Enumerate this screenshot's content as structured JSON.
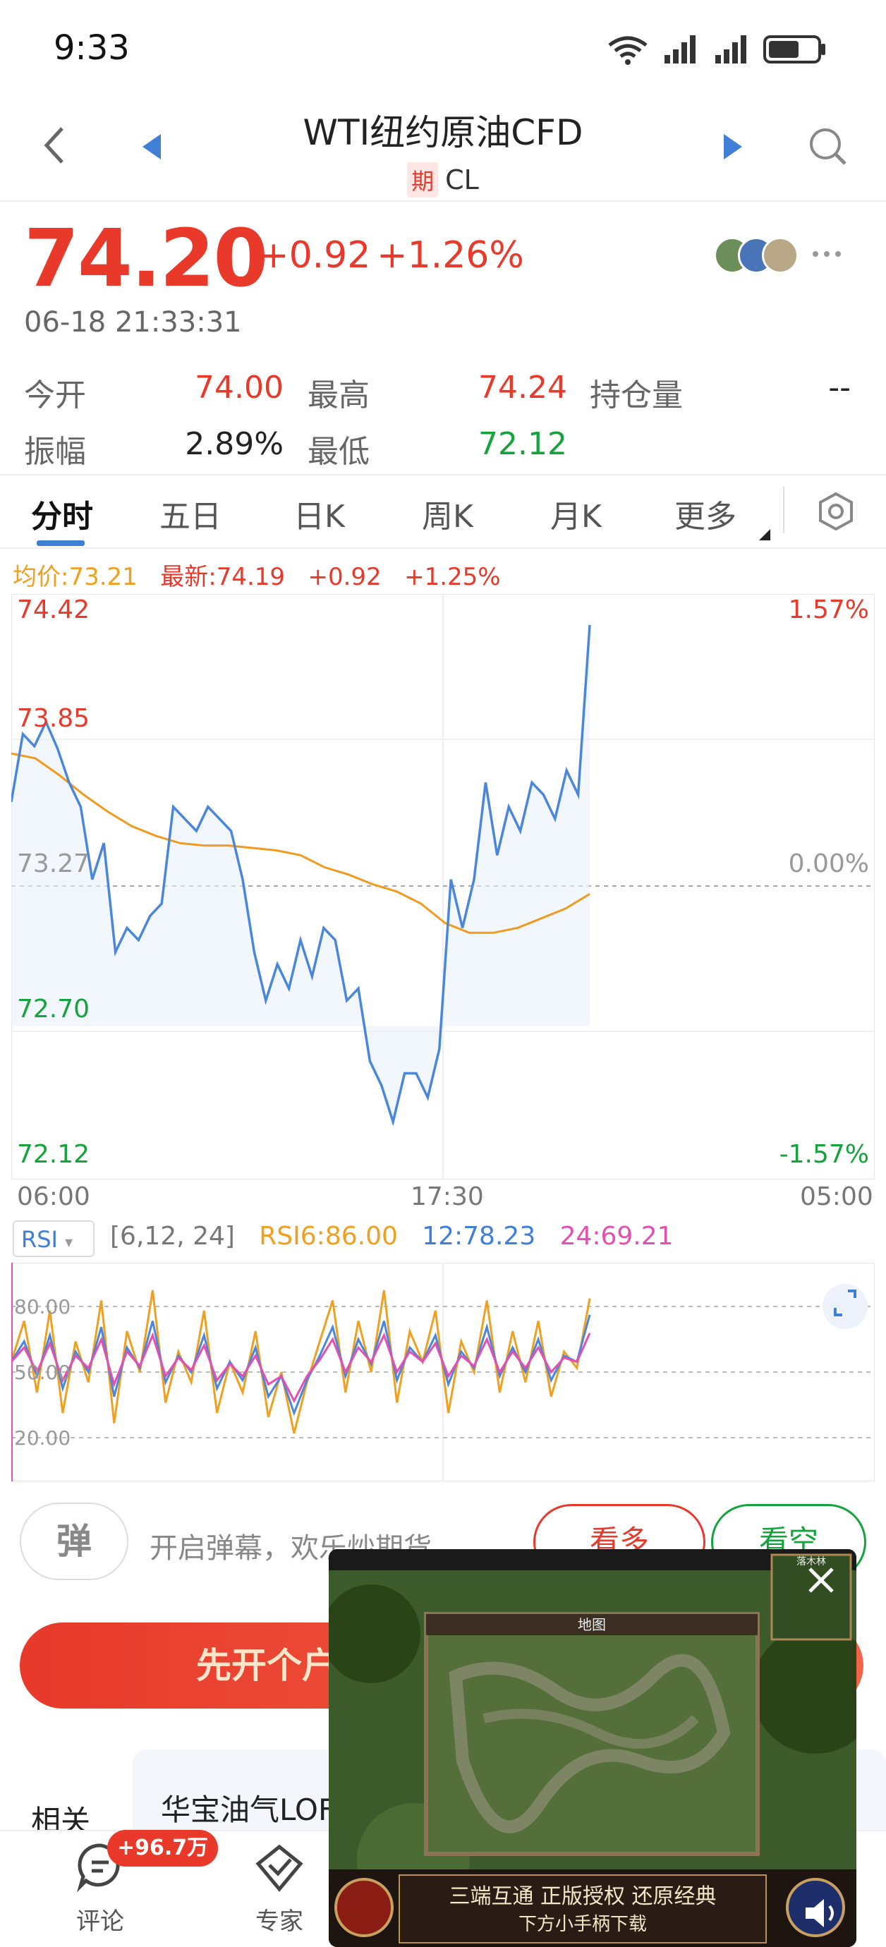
{
  "status_bar": {
    "time": "9:33"
  },
  "header": {
    "title": "WTI纽约原油CFD",
    "badge": "期",
    "code": "CL"
  },
  "quote": {
    "price": "74.20",
    "change": "+0.92",
    "change_pct": "+1.26%",
    "timestamp": "06-18 21:33:31"
  },
  "stats": [
    {
      "label": "今开",
      "value": "74.00",
      "color": "red"
    },
    {
      "label": "最高",
      "value": "74.24",
      "color": "red"
    },
    {
      "label": "持仓量",
      "value": "--",
      "color": "black"
    },
    {
      "label": "振幅",
      "value": "2.89%",
      "color": "black"
    },
    {
      "label": "最低",
      "value": "72.12",
      "color": "green"
    }
  ],
  "tabs": [
    "分时",
    "五日",
    "日K",
    "周K",
    "月K",
    "更多"
  ],
  "legend": {
    "avg": "均价:73.21",
    "latest": "最新:74.19",
    "change": "+0.92",
    "pct": "+1.25%"
  },
  "chart_data": [
    {
      "type": "line",
      "y_labels_left": [
        "74.42",
        "73.85",
        "73.27",
        "72.70",
        "72.12"
      ],
      "y_labels_right": [
        "1.57%",
        "0.00%",
        "-1.57%"
      ],
      "x_labels": [
        "06:00",
        "17:30",
        "05:00"
      ],
      "ylim": [
        72.12,
        74.42
      ],
      "series": [
        {
          "values": [
            73.62,
            73.9,
            73.85,
            73.95,
            73.84,
            73.7,
            73.6,
            73.3,
            73.45,
            73.0,
            73.1,
            73.05,
            73.15,
            73.2,
            73.6,
            73.55,
            73.5,
            73.6,
            73.55,
            73.5,
            73.3,
            73.0,
            72.8,
            72.95,
            72.85,
            73.05,
            72.9,
            73.1,
            73.05,
            72.8,
            72.85,
            72.55,
            72.45,
            72.3,
            72.5,
            72.5,
            72.4,
            72.6,
            73.3,
            73.1,
            73.3,
            73.7,
            73.4,
            73.6,
            73.5,
            73.7,
            73.65,
            73.55,
            73.75,
            73.65,
            74.35
          ]
        },
        {
          "values": [
            73.82,
            73.8,
            73.73,
            73.65,
            73.58,
            73.52,
            73.48,
            73.45,
            73.44,
            73.44,
            73.43,
            73.42,
            73.4,
            73.35,
            73.32,
            73.28,
            73.25,
            73.2,
            73.12,
            73.08,
            73.08,
            73.1,
            73.14,
            73.18,
            73.24
          ]
        }
      ]
    },
    {
      "type": "line",
      "y_labels": [
        "80.00",
        "50.00",
        "20.00"
      ],
      "ylim": [
        0,
        100
      ],
      "series": [
        {
          "name": "RSI6",
          "values": [
            55,
            75,
            40,
            80,
            30,
            65,
            45,
            85,
            25,
            70,
            50,
            90,
            35,
            60,
            45,
            80,
            30,
            55,
            40,
            70,
            28,
            50,
            20,
            45,
            65,
            85,
            40,
            75,
            50,
            90,
            35,
            70,
            55,
            80,
            30,
            65,
            50,
            85,
            40,
            70,
            45,
            75,
            38,
            60,
            52,
            86
          ]
        },
        {
          "name": "12",
          "values": [
            55,
            65,
            48,
            68,
            42,
            60,
            50,
            72,
            38,
            62,
            52,
            75,
            45,
            58,
            50,
            68,
            42,
            55,
            46,
            62,
            38,
            48,
            30,
            46,
            58,
            72,
            48,
            66,
            54,
            75,
            46,
            62,
            55,
            68,
            44,
            60,
            52,
            72,
            48,
            62,
            50,
            66,
            46,
            58,
            55,
            78
          ]
        },
        {
          "name": "24",
          "values": [
            55,
            62,
            50,
            64,
            46,
            58,
            52,
            66,
            44,
            60,
            53,
            68,
            48,
            57,
            51,
            63,
            46,
            54,
            48,
            58,
            44,
            48,
            36,
            48,
            56,
            66,
            50,
            62,
            55,
            68,
            50,
            60,
            55,
            64,
            48,
            58,
            53,
            66,
            50,
            60,
            52,
            62,
            50,
            57,
            55,
            69
          ]
        }
      ]
    }
  ],
  "rsi": {
    "selector": "RSI",
    "params": "[6,12, 24]",
    "rsi6": "RSI6:86.00",
    "rsi12": "12:78.23",
    "rsi24": "24:69.21"
  },
  "actions": {
    "danmu_icon": "弹",
    "danmu_text": "开启弹幕，欢乐炒期货",
    "long": "看多",
    "short": "看空",
    "open_account": "先开个户"
  },
  "related": {
    "label": "相关",
    "name": "华宝油气LOF"
  },
  "bottom": {
    "comment": "评论",
    "comment_badge": "+96.7万",
    "expert": "专家"
  },
  "video": {
    "title": "三端互通 正版授权 还原经典",
    "subtitle": "下方小手柄下载",
    "map_title": "地图",
    "minimap": "落木林"
  }
}
